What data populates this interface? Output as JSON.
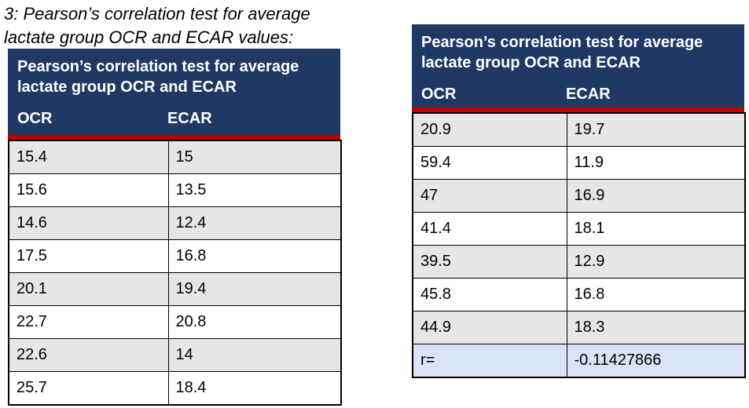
{
  "caption": {
    "line1": "3: Pearson’s correlation test for average",
    "line2": "lactate group OCR and ECAR values:"
  },
  "colors": {
    "header_bg": "#1f3864",
    "header_text": "#ffffff",
    "accent_line": "#c00000",
    "row_alt_bg": "#e7e6e6",
    "row_bg": "#ffffff",
    "result_row_bg": "#dae3f3",
    "border": "#000000",
    "text": "#000000"
  },
  "chart_data": [
    {
      "type": "table",
      "title": "Pearson’s correlation test for average lactate group OCR and ECAR",
      "columns": [
        "OCR",
        "ECAR"
      ],
      "rows": [
        [
          "15.4",
          "15"
        ],
        [
          "15.6",
          "13.5"
        ],
        [
          "14.6",
          "12.4"
        ],
        [
          "17.5",
          "16.8"
        ],
        [
          "20.1",
          "19.4"
        ],
        [
          "22.7",
          "20.8"
        ],
        [
          "22.6",
          "14"
        ],
        [
          "25.7",
          "18.4"
        ]
      ]
    },
    {
      "type": "table",
      "title": "Pearson’s correlation test for average lactate group OCR and ECAR",
      "columns": [
        "OCR",
        "ECAR"
      ],
      "rows": [
        [
          "20.9",
          "19.7"
        ],
        [
          "59.4",
          "11.9"
        ],
        [
          "47",
          "16.9"
        ],
        [
          "41.4",
          "18.1"
        ],
        [
          "39.5",
          "12.9"
        ],
        [
          "45.8",
          "16.8"
        ],
        [
          "44.9",
          "18.3"
        ]
      ],
      "result_row": [
        "r=",
        "-0.11427866"
      ]
    }
  ]
}
